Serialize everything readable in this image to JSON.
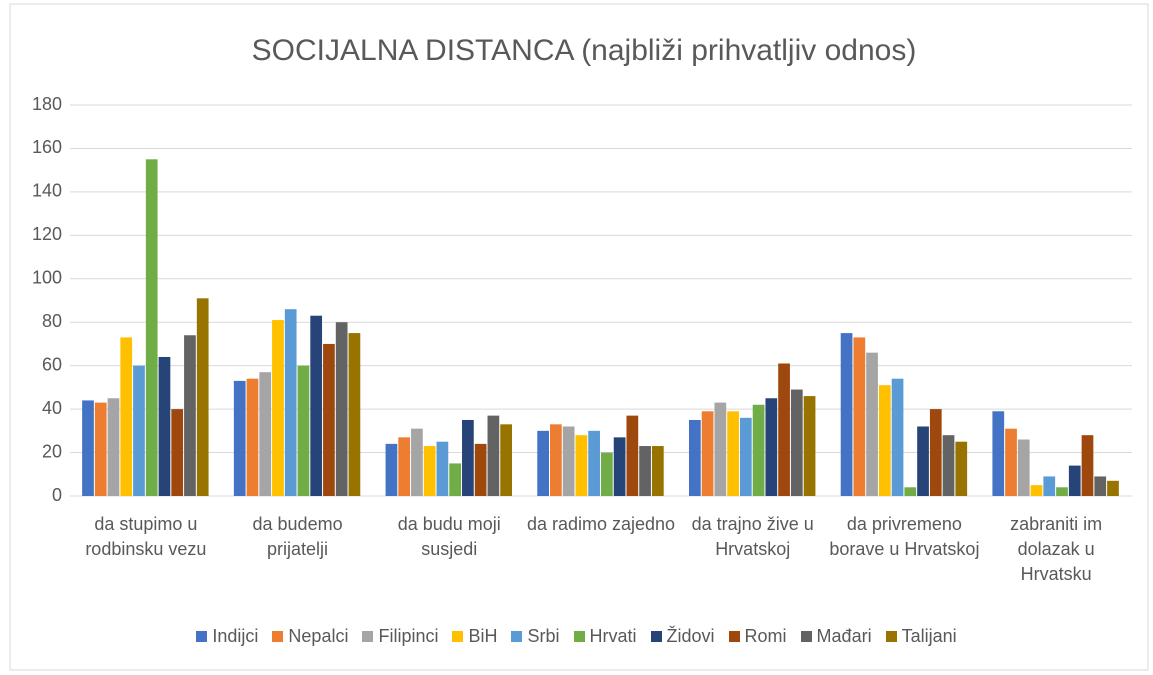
{
  "chart_data": {
    "type": "bar",
    "title": "SOCIJALNA DISTANCA (najbliži prihvatljiv odnos)",
    "categories": [
      "da stupimo u rodbinsku vezu",
      "da budemo prijatelji",
      "da budu moji susjedi",
      "da radimo zajedno",
      "da trajno žive u Hrvatskoj",
      "da privremeno borave u Hrvatskoj",
      "zabraniti im dolazak u Hrvatsku"
    ],
    "series": [
      {
        "name": "Indijci",
        "color": "#4472c4",
        "values": [
          44,
          53,
          24,
          30,
          35,
          75,
          39
        ]
      },
      {
        "name": "Nepalci",
        "color": "#ed7d31",
        "values": [
          43,
          54,
          27,
          33,
          39,
          73,
          31
        ]
      },
      {
        "name": "Filipinci",
        "color": "#a5a5a5",
        "values": [
          45,
          57,
          31,
          32,
          43,
          66,
          26
        ]
      },
      {
        "name": "BiH",
        "color": "#ffc000",
        "values": [
          73,
          81,
          23,
          28,
          39,
          51,
          5
        ]
      },
      {
        "name": "Srbi",
        "color": "#5b9bd5",
        "values": [
          60,
          86,
          25,
          30,
          36,
          54,
          9
        ]
      },
      {
        "name": "Hrvati",
        "color": "#70ad47",
        "values": [
          155,
          60,
          15,
          20,
          42,
          4,
          4
        ]
      },
      {
        "name": "Židovi",
        "color": "#264478",
        "values": [
          64,
          83,
          35,
          27,
          45,
          32,
          14
        ]
      },
      {
        "name": "Romi",
        "color": "#9e480e",
        "values": [
          40,
          70,
          24,
          37,
          61,
          40,
          28
        ]
      },
      {
        "name": "Mađari",
        "color": "#636363",
        "values": [
          74,
          80,
          37,
          23,
          49,
          28,
          9
        ]
      },
      {
        "name": "Talijani",
        "color": "#997300",
        "values": [
          91,
          75,
          33,
          23,
          46,
          25,
          7
        ]
      }
    ],
    "ylim": [
      0,
      180
    ],
    "yticks": [
      0,
      20,
      40,
      60,
      80,
      100,
      120,
      140,
      160,
      180
    ],
    "grid": true,
    "legend": "bottom"
  }
}
